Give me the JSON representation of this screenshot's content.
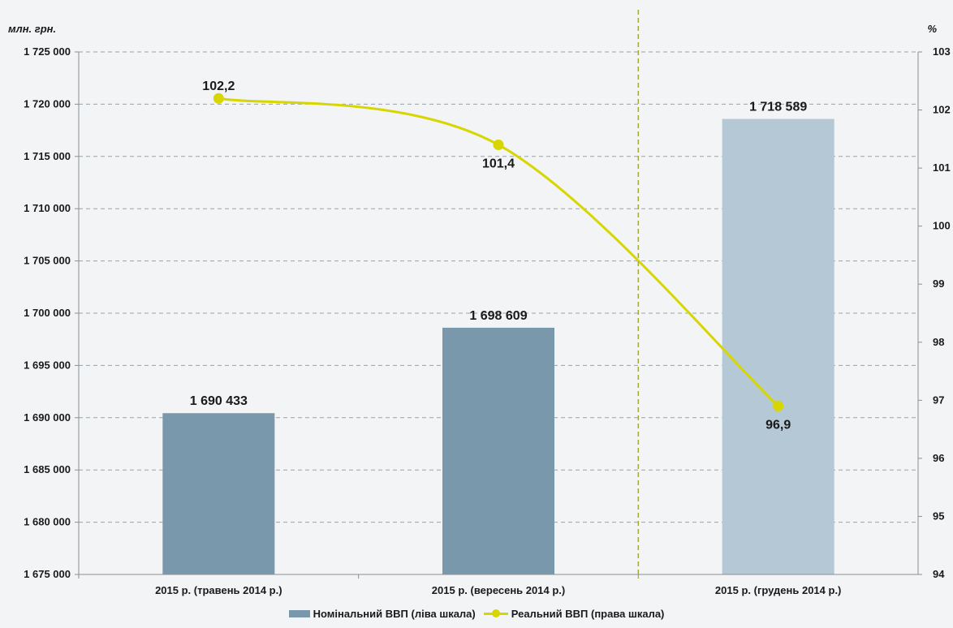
{
  "chart_data": {
    "type": "bar",
    "categories": [
      "2015 р. (травень 2014 р.)",
      "2015 р. (вересень 2014 р.)",
      "2015 р. (грудень 2014 р.)"
    ],
    "series": [
      {
        "name": "Номінальний ВВП (ліва шкала)",
        "type": "bar",
        "axis": "left",
        "values": [
          1690433,
          1698609,
          1718589
        ],
        "value_labels": [
          "1 690 433",
          "1 698 609",
          "1 718 589"
        ],
        "colors": [
          "#7a98ab",
          "#7a98ab",
          "#b5c8d6"
        ]
      },
      {
        "name": "Реальний ВВП (права шкала)",
        "type": "line",
        "axis": "right",
        "values": [
          102.2,
          101.4,
          96.9
        ],
        "value_labels": [
          "102,2",
          "101,4",
          "96,9"
        ],
        "color": "#d8d600"
      }
    ],
    "left_axis": {
      "unit_label": "млн. грн.",
      "ylim": [
        1675000,
        1725000
      ],
      "tick_values": [
        1675000,
        1680000,
        1685000,
        1690000,
        1695000,
        1700000,
        1705000,
        1710000,
        1715000,
        1720000,
        1725000
      ],
      "tick_labels": [
        "1 675 000",
        "1 680 000",
        "1 685 000",
        "1 690 000",
        "1 695 000",
        "1 700 000",
        "1 705 000",
        "1 710 000",
        "1 715 000",
        "1 720 000",
        "1 725 000"
      ]
    },
    "right_axis": {
      "unit_label": "%",
      "ylim": [
        94,
        103
      ],
      "tick_values": [
        94,
        95,
        96,
        97,
        98,
        99,
        100,
        101,
        102,
        103
      ],
      "tick_labels": [
        "94",
        "95",
        "96",
        "97",
        "98",
        "99",
        "100",
        "101",
        "102",
        "103"
      ]
    },
    "grid": true,
    "separator_line": "between second and third category",
    "legend": {
      "position": "bottom",
      "items": [
        "Номінальний ВВП (ліва шкала)",
        "Реальний ВВП (права шкала)"
      ]
    }
  }
}
